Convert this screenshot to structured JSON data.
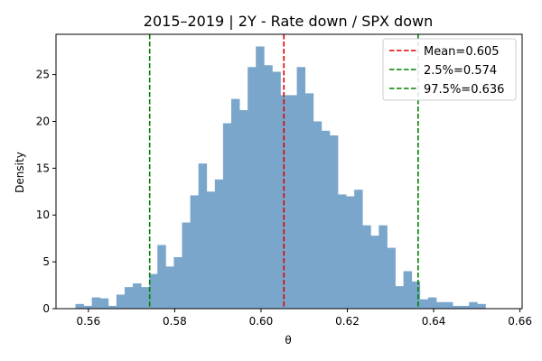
{
  "chart_data": {
    "type": "histogram",
    "title": "2015–2019 | 2Y - Rate down / SPX down",
    "xlabel": "θ",
    "ylabel": "Density",
    "xlim": [
      0.5525,
      0.6605
    ],
    "ylim": [
      0,
      29.3
    ],
    "x_ticks": [
      0.56,
      0.58,
      0.6,
      0.62,
      0.64,
      0.66
    ],
    "x_tick_labels": [
      "0.56",
      "0.58",
      "0.60",
      "0.62",
      "0.64",
      "0.66"
    ],
    "y_ticks": [
      0,
      5,
      10,
      15,
      20,
      25
    ],
    "y_tick_labels": [
      "0",
      "5",
      "10",
      "15",
      "20",
      "25"
    ],
    "bin_start": 0.557,
    "bin_width": 0.0019,
    "bar_color": "#7ba6cb",
    "values": [
      0.5,
      0.3,
      1.2,
      1.1,
      0.3,
      1.5,
      2.3,
      2.7,
      2.3,
      3.7,
      6.8,
      4.5,
      5.5,
      9.2,
      12.1,
      15.5,
      12.5,
      13.8,
      19.8,
      22.4,
      21.2,
      25.8,
      28.0,
      26.0,
      25.3,
      22.8,
      22.8,
      25.8,
      23.0,
      20.0,
      19.0,
      18.5,
      12.2,
      12.0,
      12.7,
      8.9,
      7.8,
      8.9,
      6.5,
      2.4,
      4.0,
      2.9,
      1.0,
      1.2,
      0.7,
      0.7,
      0.3,
      0.3,
      0.7,
      0.5
    ],
    "vlines": [
      {
        "label": "Mean=0.605",
        "x": 0.6053,
        "color": "#e00000"
      },
      {
        "label": "2.5%=0.574",
        "x": 0.5742,
        "color": "#008000"
      },
      {
        "label": "97.5%=0.636",
        "x": 0.6364,
        "color": "#008000"
      }
    ],
    "legend_position": "upper right",
    "grid": false
  }
}
